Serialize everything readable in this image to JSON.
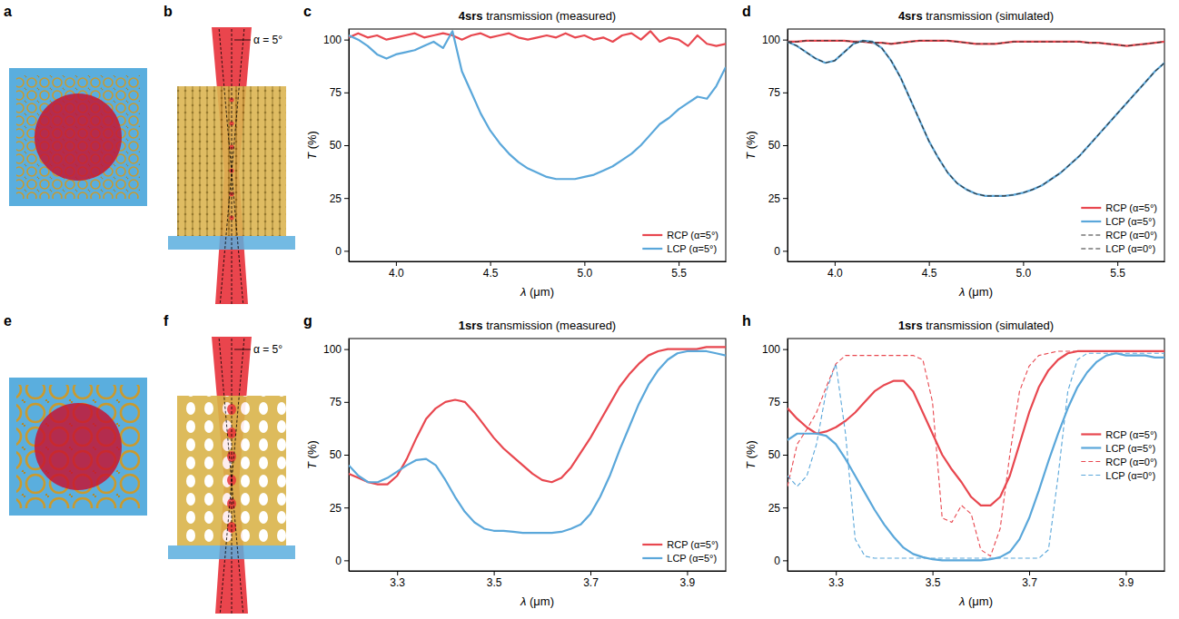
{
  "chart_data": [
    {
      "type": "line",
      "panel_label": "c",
      "title": "4srs transmission (measured)",
      "x_label": "λ (μm)",
      "y_label": "T (%)",
      "x": [
        3.75,
        3.8,
        3.85,
        3.9,
        3.95,
        4,
        4.05,
        4.1,
        4.15,
        4.2,
        4.25,
        4.3,
        4.35,
        4.4,
        4.45,
        4.5,
        4.55,
        4.6,
        4.65,
        4.7,
        4.75,
        4.8,
        4.85,
        4.9,
        4.95,
        5,
        5.05,
        5.1,
        5.15,
        5.2,
        5.25,
        5.3,
        5.35,
        5.4,
        5.45,
        5.5,
        5.55,
        5.6,
        5.65,
        5.7,
        5.75
      ],
      "xlim": [
        3.75,
        5.75
      ],
      "xticks": [
        {
          "value": 4,
          "label": "4.0"
        },
        4.5,
        {
          "value": 5,
          "label": "5.0"
        },
        5.5
      ],
      "ylim": [
        -5,
        105
      ],
      "yticks": [
        0,
        25,
        50,
        75,
        100
      ],
      "legend": "lower right",
      "series": [
        {
          "name": "RCP (α=5°)",
          "color": "#e8474f",
          "line_style": "solid",
          "values": [
            101,
            103,
            101,
            102,
            100,
            101,
            102,
            103,
            101,
            102,
            103,
            102,
            100,
            102,
            103,
            101,
            102,
            103,
            101,
            100,
            101,
            102,
            101,
            103,
            101,
            102,
            100,
            101,
            99,
            102,
            103,
            100,
            104,
            99,
            101,
            100,
            97,
            102,
            98,
            97,
            98
          ]
        },
        {
          "name": "LCP (α=5°)",
          "color": "#5aa7da",
          "line_style": "solid",
          "values": [
            102,
            100,
            97,
            93,
            91,
            93,
            94,
            95,
            97,
            99,
            96,
            104,
            85,
            75,
            65,
            57,
            51,
            46,
            42,
            39,
            37,
            35,
            34,
            34,
            34,
            35,
            36,
            38,
            40,
            43,
            46,
            50,
            55,
            60,
            63,
            67,
            70,
            73,
            72,
            78,
            87
          ]
        }
      ]
    },
    {
      "type": "line",
      "panel_label": "d",
      "title": "4srs transmission (simulated)",
      "x_label": "λ (μm)",
      "y_label": "T (%)",
      "x": [
        3.75,
        3.8,
        3.85,
        3.9,
        3.95,
        4,
        4.05,
        4.1,
        4.15,
        4.2,
        4.25,
        4.3,
        4.35,
        4.4,
        4.45,
        4.5,
        4.55,
        4.6,
        4.65,
        4.7,
        4.75,
        4.8,
        4.85,
        4.9,
        4.95,
        5,
        5.05,
        5.1,
        5.15,
        5.2,
        5.25,
        5.3,
        5.35,
        5.4,
        5.45,
        5.5,
        5.55,
        5.6,
        5.65,
        5.7,
        5.75
      ],
      "xlim": [
        3.75,
        5.75
      ],
      "xticks": [
        {
          "value": 4,
          "label": "4.0"
        },
        4.5,
        {
          "value": 5,
          "label": "5.0"
        },
        5.5
      ],
      "ylim": [
        -5,
        105
      ],
      "yticks": [
        0,
        25,
        50,
        75,
        100
      ],
      "legend": "lower right",
      "series": [
        {
          "name": "RCP (α=5°)",
          "color": "#e8474f",
          "line_style": "solid",
          "values": [
            99,
            99,
            99.5,
            99.5,
            99.5,
            99.5,
            99.5,
            99,
            99,
            98.5,
            98.5,
            98,
            98.5,
            99,
            99.5,
            99.5,
            99.5,
            99.5,
            99,
            98.5,
            98,
            98,
            98,
            98.5,
            99,
            99,
            99,
            99,
            99,
            99,
            99,
            99,
            98.5,
            98.5,
            98,
            97.5,
            97,
            97.5,
            98,
            98.5,
            99
          ]
        },
        {
          "name": "LCP (α=5°)",
          "color": "#5aa7da",
          "line_style": "solid",
          "values": [
            99,
            97,
            94,
            91,
            89,
            90,
            94,
            98,
            99.5,
            99,
            96,
            90,
            82,
            72,
            62,
            52,
            44,
            37,
            32,
            29,
            27,
            26,
            26,
            26,
            26.5,
            27.5,
            29,
            31,
            34,
            37,
            41,
            45,
            50,
            55,
            60,
            65,
            70,
            75,
            80,
            85,
            89
          ]
        },
        {
          "name": "RCP (α=0°)",
          "color": "#333333",
          "line_style": "dashed",
          "values": [
            99,
            99,
            99.5,
            99.5,
            99.5,
            99.5,
            99.5,
            99,
            99,
            98.5,
            98.5,
            98,
            98.5,
            99,
            99.5,
            99.5,
            99.5,
            99.5,
            99,
            98.5,
            98,
            98,
            98,
            98.5,
            99,
            99,
            99,
            99,
            99,
            99,
            99,
            99,
            98.5,
            98.5,
            98,
            97.5,
            97,
            97.5,
            98,
            98.5,
            99
          ]
        },
        {
          "name": "LCP (α=0°)",
          "color": "#333333",
          "line_style": "dashed",
          "values": [
            99,
            97,
            94,
            91,
            89,
            90,
            94,
            98,
            99.5,
            99,
            96,
            90,
            82,
            72,
            62,
            52,
            44,
            37,
            32,
            29,
            27,
            26,
            26,
            26,
            26.5,
            27.5,
            29,
            31,
            34,
            37,
            41,
            45,
            50,
            55,
            60,
            65,
            70,
            75,
            80,
            85,
            89
          ]
        }
      ]
    },
    {
      "type": "line",
      "panel_label": "g",
      "title": "1srs transmission (measured)",
      "x_label": "λ (μm)",
      "y_label": "T (%)",
      "x": [
        3.2,
        3.22,
        3.24,
        3.26,
        3.28,
        3.3,
        3.32,
        3.34,
        3.36,
        3.38,
        3.4,
        3.42,
        3.44,
        3.46,
        3.48,
        3.5,
        3.52,
        3.54,
        3.56,
        3.58,
        3.6,
        3.62,
        3.64,
        3.66,
        3.68,
        3.7,
        3.72,
        3.74,
        3.76,
        3.78,
        3.8,
        3.82,
        3.84,
        3.86,
        3.88,
        3.9,
        3.92,
        3.94,
        3.96,
        3.98
      ],
      "xlim": [
        3.2,
        3.98
      ],
      "xticks": [
        3.3,
        3.5,
        3.7,
        3.9
      ],
      "ylim": [
        -5,
        105
      ],
      "yticks": [
        0,
        25,
        50,
        75,
        100
      ],
      "legend": "lower right",
      "series": [
        {
          "name": "RCP (α=5°)",
          "color": "#e8474f",
          "line_style": "solid",
          "values": [
            41,
            39,
            37,
            36,
            36,
            40,
            48,
            58,
            67,
            72,
            75,
            76,
            75,
            70,
            64,
            58,
            53,
            49,
            45,
            41,
            38,
            37,
            39,
            44,
            51,
            58,
            66,
            74,
            82,
            88,
            93,
            97,
            99,
            100,
            100,
            100,
            100,
            101,
            101,
            101
          ]
        },
        {
          "name": "LCP (α=5°)",
          "color": "#5aa7da",
          "line_style": "solid",
          "values": [
            45,
            40,
            37,
            37,
            39,
            42,
            45,
            47.5,
            48,
            45,
            38,
            30,
            23,
            18,
            15,
            14,
            14,
            13.5,
            13,
            13,
            13,
            13,
            13.5,
            15,
            17,
            22,
            30,
            40,
            52,
            63,
            74,
            83,
            90,
            95,
            98,
            99,
            99,
            99,
            98,
            97
          ]
        }
      ]
    },
    {
      "type": "line",
      "panel_label": "h",
      "title": "1srs transmission (simulated)",
      "x_label": "λ (μm)",
      "y_label": "T (%)",
      "x": [
        3.2,
        3.22,
        3.24,
        3.26,
        3.28,
        3.3,
        3.32,
        3.34,
        3.36,
        3.38,
        3.4,
        3.42,
        3.44,
        3.46,
        3.48,
        3.5,
        3.52,
        3.54,
        3.56,
        3.58,
        3.6,
        3.62,
        3.64,
        3.66,
        3.68,
        3.7,
        3.72,
        3.74,
        3.76,
        3.78,
        3.8,
        3.82,
        3.84,
        3.86,
        3.88,
        3.9,
        3.92,
        3.94,
        3.96,
        3.98
      ],
      "xlim": [
        3.2,
        3.98
      ],
      "xticks": [
        3.3,
        3.5,
        3.7,
        3.9
      ],
      "ylim": [
        -5,
        105
      ],
      "yticks": [
        0,
        25,
        50,
        75,
        100
      ],
      "legend": "center right",
      "series": [
        {
          "name": "RCP (α=5°)",
          "color": "#e8474f",
          "line_style": "solid",
          "values": [
            72,
            67,
            63,
            60,
            61,
            63,
            66,
            70,
            75,
            80,
            83,
            85,
            85,
            80,
            70,
            60,
            50,
            43,
            37,
            30,
            26,
            26,
            30,
            40,
            55,
            70,
            82,
            90,
            95,
            98,
            99,
            99,
            99,
            99,
            99,
            99,
            99,
            99,
            99,
            99
          ]
        },
        {
          "name": "LCP (α=5°)",
          "color": "#5aa7da",
          "line_style": "solid",
          "values": [
            57,
            60,
            60,
            60,
            59,
            55,
            48,
            40,
            32,
            24,
            17,
            11,
            6,
            3,
            1.5,
            0.5,
            0,
            0,
            0,
            0,
            0,
            0.5,
            1.5,
            4,
            10,
            20,
            33,
            47,
            60,
            72,
            82,
            89,
            94,
            97,
            98,
            97,
            97,
            97,
            96,
            96
          ]
        },
        {
          "name": "RCP (α=0°)",
          "color": "#e8474f",
          "line_style": "dashed",
          "values": [
            35,
            55,
            62,
            70,
            82,
            93,
            97,
            97,
            97,
            97,
            97,
            97,
            97,
            97,
            95,
            75,
            20,
            18,
            26,
            22,
            5,
            2,
            15,
            50,
            80,
            92,
            97,
            98,
            99,
            99,
            99,
            99,
            99,
            99,
            99,
            99,
            99,
            99,
            99,
            99
          ]
        },
        {
          "name": "LCP (α=0°)",
          "color": "#5aa7da",
          "line_style": "dashed",
          "values": [
            40,
            35,
            40,
            55,
            80,
            93,
            60,
            10,
            2,
            1,
            1,
            1,
            1,
            1,
            1,
            1,
            1,
            1,
            1,
            1,
            1,
            1,
            1,
            1,
            1,
            1,
            1,
            5,
            40,
            80,
            95,
            98,
            98,
            98,
            98,
            98,
            98,
            98,
            98,
            98
          ]
        }
      ]
    }
  ],
  "illustrations": [
    {
      "panel_label": "a"
    },
    {
      "panel_label": "b",
      "annotation": "α = 5°"
    },
    {
      "panel_label": "e"
    },
    {
      "panel_label": "f",
      "annotation": "α = 5°"
    }
  ]
}
